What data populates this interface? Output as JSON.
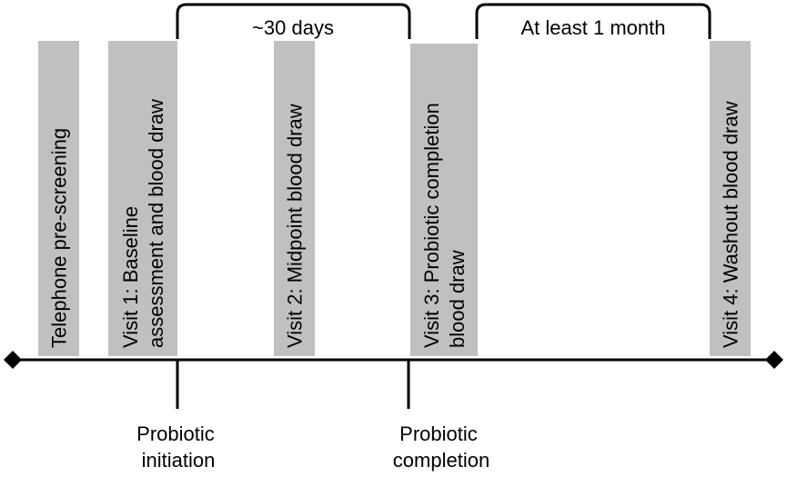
{
  "bars": [
    {
      "lines": [
        "Telephone pre-screening"
      ]
    },
    {
      "lines": [
        "Visit 1: Baseline",
        "assessment and blood draw"
      ]
    },
    {
      "lines": [
        "Visit 2: Midpoint blood draw"
      ]
    },
    {
      "lines": [
        "Visit 3: Probiotic completion",
        "blood draw"
      ]
    },
    {
      "lines": [
        "Visit 4: Washout blood draw"
      ]
    }
  ],
  "brackets": [
    {
      "label": "~30 days"
    },
    {
      "label": "At least 1 month"
    }
  ],
  "markers": [
    {
      "lines": [
        "Probiotic",
        "initiation"
      ]
    },
    {
      "lines": [
        "Probiotic",
        "completion"
      ]
    }
  ],
  "colors": {
    "bar_fill": "#c0c0c0",
    "line": "#000000",
    "text": "#000000"
  }
}
